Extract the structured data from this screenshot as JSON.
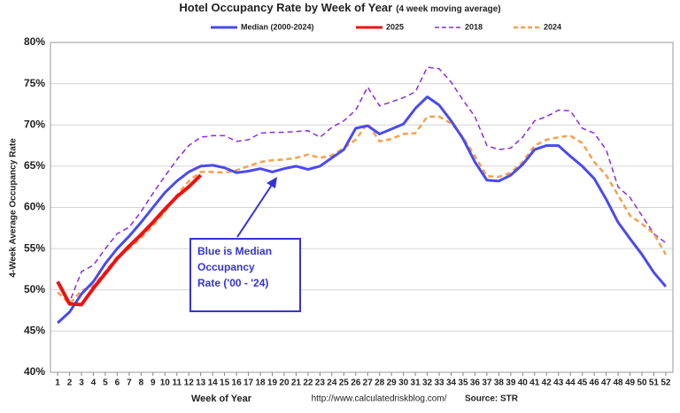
{
  "chart_data": {
    "type": "line",
    "title": "Hotel Occupancy Rate by  Week of Year",
    "subtitle": "(4 week moving average)",
    "x_label": "Week of Year",
    "y_label": "4-Week Average Occupancy Rate",
    "source_url": "http://www.calculatedriskblog.com/",
    "source": "Source: STR",
    "annotation": [
      "Blue is Median",
      "Occupancy",
      "Rate ('00 - '24)"
    ],
    "annotation_color": "#3333dd",
    "x": [
      1,
      2,
      3,
      4,
      5,
      6,
      7,
      8,
      9,
      10,
      11,
      12,
      13,
      14,
      15,
      16,
      17,
      18,
      19,
      20,
      21,
      22,
      23,
      24,
      25,
      26,
      27,
      28,
      29,
      30,
      31,
      32,
      33,
      34,
      35,
      36,
      37,
      38,
      39,
      40,
      41,
      42,
      43,
      44,
      45,
      46,
      47,
      48,
      49,
      50,
      51,
      52
    ],
    "xlim": [
      0.4,
      52.6
    ],
    "xticks": [
      1,
      2,
      3,
      4,
      5,
      6,
      7,
      8,
      9,
      10,
      11,
      12,
      13,
      14,
      15,
      16,
      17,
      18,
      19,
      20,
      21,
      22,
      23,
      24,
      25,
      26,
      27,
      28,
      29,
      30,
      31,
      32,
      33,
      34,
      35,
      36,
      37,
      38,
      39,
      40,
      41,
      42,
      43,
      44,
      45,
      46,
      47,
      48,
      49,
      50,
      51,
      52
    ],
    "ylim": [
      40,
      80
    ],
    "yticks": [
      {
        "value": 40,
        "label": "40%"
      },
      {
        "value": 45,
        "label": "45%"
      },
      {
        "value": 50,
        "label": "50%"
      },
      {
        "value": 55,
        "label": "55%"
      },
      {
        "value": 60,
        "label": "60%"
      },
      {
        "value": 65,
        "label": "65%"
      },
      {
        "value": 70,
        "label": "70%"
      },
      {
        "value": 75,
        "label": "75%"
      },
      {
        "value": 80,
        "label": "80%"
      }
    ],
    "grid": true,
    "legend": "top",
    "series": [
      {
        "name": "Median (2000-2024)",
        "color": "#4a4aee",
        "line_style": "solid",
        "line_width": 3,
        "values": [
          46,
          47.3,
          49.5,
          51,
          53.2,
          55,
          56.5,
          58.2,
          60,
          61.8,
          63.2,
          64.3,
          65,
          65.1,
          64.8,
          64.2,
          64.4,
          64.7,
          64.3,
          64.7,
          65,
          64.6,
          65,
          66,
          67,
          69.6,
          69.9,
          68.9,
          69.5,
          70.1,
          72,
          73.4,
          72.4,
          70.5,
          68.3,
          65.5,
          63.3,
          63.2,
          63.9,
          65.2,
          67,
          67.5,
          67.5,
          66.2,
          65,
          63.5,
          61,
          58.2,
          56.2,
          54.3,
          52.1,
          50.4
        ]
      },
      {
        "name": "2025",
        "color": "#ee1111",
        "line_style": "solid",
        "line_width": 4,
        "values": [
          51,
          48.3,
          48.2,
          50.2,
          52,
          53.8,
          55.3,
          56.7,
          58.2,
          59.8,
          61.3,
          62.5,
          63.9,
          null,
          null,
          null,
          null,
          null,
          null,
          null,
          null,
          null,
          null,
          null,
          null,
          null,
          null,
          null,
          null,
          null,
          null,
          null,
          null,
          null,
          null,
          null,
          null,
          null,
          null,
          null,
          null,
          null,
          null,
          null,
          null,
          null,
          null,
          null,
          null,
          null,
          null,
          null
        ]
      },
      {
        "name": "2018",
        "color": "#8a2be2",
        "line_style": "dashed",
        "line_width": 1.5,
        "values": [
          50.8,
          48.5,
          52.2,
          53,
          55,
          56.8,
          57.6,
          59.5,
          61.7,
          63.8,
          65.8,
          67.5,
          68.5,
          68.7,
          68.7,
          68,
          68.2,
          69,
          69.1,
          69.1,
          69.2,
          69.3,
          68.5,
          69.7,
          70.5,
          71.8,
          74.6,
          72.3,
          72.8,
          73.3,
          74,
          77,
          76.8,
          75.2,
          73,
          71,
          67.5,
          67,
          67.2,
          68.5,
          70.5,
          71,
          71.8,
          71.7,
          69.6,
          69,
          67,
          62.5,
          61.2,
          59,
          56.8,
          55.7
        ]
      },
      {
        "name": "2024",
        "color": "#f5a050",
        "line_style": "dashed",
        "line_width": 2.5,
        "values": [
          49.7,
          48.3,
          49.9,
          50.5,
          52.2,
          54,
          55,
          56.3,
          57.8,
          59.5,
          61.5,
          63.2,
          64.3,
          64.3,
          64.2,
          64.5,
          65,
          65.5,
          65.7,
          65.8,
          66,
          66.4,
          66,
          66.3,
          67.2,
          68.2,
          70.2,
          68,
          68.3,
          68.9,
          69,
          71,
          71,
          70.2,
          68.5,
          66.2,
          63.8,
          63.7,
          64.2,
          65.5,
          67.5,
          68.2,
          68.5,
          68.7,
          67.8,
          65.5,
          63.9,
          61.5,
          59,
          58,
          56.8,
          54.3
        ]
      }
    ]
  }
}
